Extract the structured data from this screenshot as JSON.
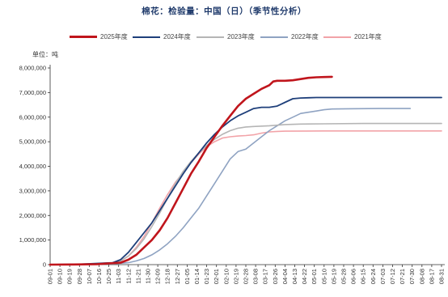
{
  "title": "棉花：检验量：中国（日）（季节性分析）",
  "unit_label": "单位：吨",
  "chart_data": {
    "type": "line",
    "ylim": [
      0,
      8000000
    ],
    "yticks": [
      "0",
      "1,000,000",
      "2,000,000",
      "3,000,000",
      "4,000,000",
      "5,000,000",
      "6,000,000",
      "7,000,000",
      "8,000,000"
    ],
    "xticks": [
      "09-01",
      "09-10",
      "09-19",
      "09-28",
      "10-07",
      "10-16",
      "10-25",
      "11-03",
      "11-12",
      "11-21",
      "11-30",
      "12-09",
      "12-18",
      "12-27",
      "01-05",
      "01-14",
      "01-23",
      "02-01",
      "02-10",
      "02-19",
      "02-28",
      "03-08",
      "03-17",
      "03-26",
      "04-04",
      "04-13",
      "04-22",
      "05-01",
      "05-10",
      "05-19",
      "05-28",
      "06-06",
      "06-15",
      "06-24",
      "07-03",
      "07-12",
      "07-21",
      "07-30",
      "08-08",
      "08-17",
      "08-31"
    ],
    "grid": false,
    "legend_position": "top",
    "series": [
      {
        "name": "2025年度",
        "color": "#c0151c",
        "width": 2.6,
        "points": [
          [
            0,
            0
          ],
          [
            3,
            5000
          ],
          [
            6,
            20000
          ],
          [
            9,
            80000
          ],
          [
            10,
            200000
          ],
          [
            11,
            400000
          ],
          [
            12,
            700000
          ],
          [
            13,
            1000000
          ],
          [
            14,
            1400000
          ],
          [
            15,
            1900000
          ],
          [
            16,
            2500000
          ],
          [
            17,
            3100000
          ],
          [
            18,
            3700000
          ],
          [
            19,
            4200000
          ],
          [
            20,
            4750000
          ],
          [
            21,
            5200000
          ],
          [
            22,
            5650000
          ],
          [
            23,
            6050000
          ],
          [
            24,
            6450000
          ],
          [
            25,
            6750000
          ],
          [
            26,
            6950000
          ],
          [
            27,
            7150000
          ],
          [
            28,
            7300000
          ],
          [
            28.5,
            7450000
          ],
          [
            29,
            7480000
          ],
          [
            30,
            7480000
          ],
          [
            31,
            7500000
          ],
          [
            32,
            7550000
          ],
          [
            33,
            7600000
          ],
          [
            34,
            7620000
          ],
          [
            35,
            7630000
          ],
          [
            36,
            7640000
          ]
        ]
      },
      {
        "name": "2024年度",
        "color": "#1e3f7a",
        "width": 1.8,
        "points": [
          [
            0,
            0
          ],
          [
            4,
            20000
          ],
          [
            8,
            80000
          ],
          [
            9,
            200000
          ],
          [
            10,
            500000
          ],
          [
            11,
            900000
          ],
          [
            12,
            1300000
          ],
          [
            13,
            1700000
          ],
          [
            14,
            2200000
          ],
          [
            15,
            2700000
          ],
          [
            16,
            3200000
          ],
          [
            17,
            3700000
          ],
          [
            18,
            4150000
          ],
          [
            19,
            4550000
          ],
          [
            20,
            4950000
          ],
          [
            21,
            5300000
          ],
          [
            22,
            5600000
          ],
          [
            23,
            5850000
          ],
          [
            24,
            6050000
          ],
          [
            25,
            6200000
          ],
          [
            26,
            6350000
          ],
          [
            27,
            6400000
          ],
          [
            28,
            6400000
          ],
          [
            29,
            6450000
          ],
          [
            30,
            6600000
          ],
          [
            31,
            6750000
          ],
          [
            32,
            6780000
          ],
          [
            33,
            6790000
          ],
          [
            34,
            6800000
          ],
          [
            38,
            6800000
          ],
          [
            40,
            6800000
          ],
          [
            42,
            6800000
          ],
          [
            45,
            6800000
          ],
          [
            48,
            6800000
          ],
          [
            50,
            6800000
          ]
        ]
      },
      {
        "name": "2023年度",
        "color": "#b5b5b5",
        "width": 1.6,
        "points": [
          [
            0,
            0
          ],
          [
            4,
            10000
          ],
          [
            8,
            50000
          ],
          [
            9,
            150000
          ],
          [
            10,
            350000
          ],
          [
            11,
            650000
          ],
          [
            12,
            1050000
          ],
          [
            13,
            1550000
          ],
          [
            14,
            2100000
          ],
          [
            15,
            2700000
          ],
          [
            16,
            3300000
          ],
          [
            17,
            3800000
          ],
          [
            18,
            4200000
          ],
          [
            19,
            4550000
          ],
          [
            20,
            4850000
          ],
          [
            21,
            5100000
          ],
          [
            22,
            5300000
          ],
          [
            23,
            5450000
          ],
          [
            24,
            5550000
          ],
          [
            25,
            5600000
          ],
          [
            26,
            5620000
          ],
          [
            28,
            5650000
          ],
          [
            30,
            5700000
          ],
          [
            32,
            5720000
          ],
          [
            35,
            5730000
          ],
          [
            40,
            5740000
          ],
          [
            45,
            5740000
          ],
          [
            50,
            5740000
          ]
        ]
      },
      {
        "name": "2022年度",
        "color": "#8fa3c2",
        "width": 1.6,
        "points": [
          [
            0,
            0
          ],
          [
            5,
            10000
          ],
          [
            8,
            30000
          ],
          [
            10,
            80000
          ],
          [
            11,
            150000
          ],
          [
            12,
            250000
          ],
          [
            13,
            400000
          ],
          [
            14,
            600000
          ],
          [
            15,
            850000
          ],
          [
            16,
            1150000
          ],
          [
            17,
            1500000
          ],
          [
            18,
            1900000
          ],
          [
            19,
            2300000
          ],
          [
            20,
            2800000
          ],
          [
            21,
            3300000
          ],
          [
            22,
            3800000
          ],
          [
            23,
            4300000
          ],
          [
            24,
            4600000
          ],
          [
            25,
            4700000
          ],
          [
            26,
            4950000
          ],
          [
            27,
            5200000
          ],
          [
            28,
            5450000
          ],
          [
            29,
            5650000
          ],
          [
            30,
            5850000
          ],
          [
            31,
            6000000
          ],
          [
            32,
            6150000
          ],
          [
            33,
            6200000
          ],
          [
            34,
            6250000
          ],
          [
            35,
            6300000
          ],
          [
            36,
            6330000
          ],
          [
            38,
            6340000
          ],
          [
            42,
            6350000
          ],
          [
            46,
            6350000
          ]
        ]
      },
      {
        "name": "2021年度",
        "color": "#f2a3a8",
        "width": 1.6,
        "points": [
          [
            0,
            0
          ],
          [
            5,
            10000
          ],
          [
            8,
            50000
          ],
          [
            9,
            150000
          ],
          [
            10,
            350000
          ],
          [
            11,
            700000
          ],
          [
            12,
            1150000
          ],
          [
            13,
            1700000
          ],
          [
            14,
            2300000
          ],
          [
            15,
            2850000
          ],
          [
            16,
            3350000
          ],
          [
            17,
            3750000
          ],
          [
            18,
            4150000
          ],
          [
            19,
            4500000
          ],
          [
            20,
            4800000
          ],
          [
            21,
            5000000
          ],
          [
            22,
            5150000
          ],
          [
            23,
            5200000
          ],
          [
            24,
            5230000
          ],
          [
            25,
            5250000
          ],
          [
            26,
            5280000
          ],
          [
            27,
            5350000
          ],
          [
            28,
            5400000
          ],
          [
            29,
            5420000
          ],
          [
            30,
            5430000
          ],
          [
            35,
            5440000
          ],
          [
            40,
            5440000
          ],
          [
            45,
            5440000
          ],
          [
            50,
            5440000
          ]
        ]
      }
    ],
    "x_domain": [
      0,
      50
    ]
  }
}
